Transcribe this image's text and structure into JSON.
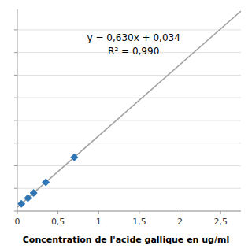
{
  "chart_data": {
    "type": "scatter",
    "x_label": "Concentration de l'acide gallique en ug/ml",
    "annotations": [
      "y = 0,630x + 0,034",
      "R² = 0,990"
    ],
    "series": [
      {
        "type": "scatter",
        "x": [
          0.05,
          0.13,
          0.2,
          0.35,
          0.7
        ],
        "values": [
          0.065,
          0.115,
          0.16,
          0.254,
          0.475
        ],
        "color": "#2E75B6",
        "marker": "diamond"
      },
      {
        "type": "line",
        "x": [
          0.0,
          2.75
        ],
        "values": [
          0.034,
          1.7665
        ],
        "color": "#A0A0A0"
      }
    ],
    "xlim": [
      0.0,
      2.75
    ],
    "ylim": [
      0.0,
      1.78
    ],
    "xticks": [
      0,
      {
        "value": 0.5,
        "label": "0,5"
      },
      1,
      {
        "value": 1.5,
        "label": "1,5"
      },
      2,
      {
        "value": 2.5,
        "label": "2,5"
      }
    ],
    "yticks": [
      0.0,
      0.2,
      0.4,
      0.6,
      0.8,
      1.0,
      1.2,
      1.4,
      1.6
    ],
    "tick_labels": "x",
    "grid": true
  }
}
